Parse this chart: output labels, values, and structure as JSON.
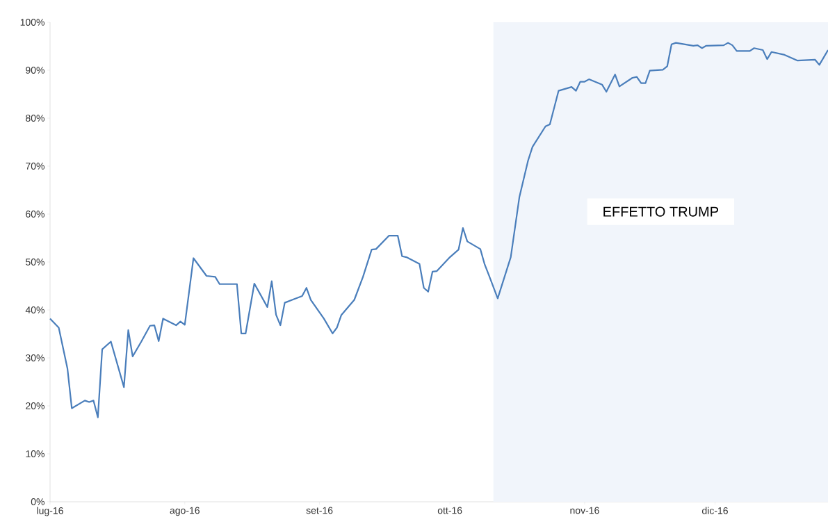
{
  "chart_data": {
    "type": "line",
    "color": "#4a7ebb",
    "x": [
      "2016-07-01",
      "2016-07-03",
      "2016-07-05",
      "2016-07-06",
      "2016-07-09",
      "2016-07-10",
      "2016-07-11",
      "2016-07-12",
      "2016-07-13",
      "2016-07-15",
      "2016-07-18",
      "2016-07-19",
      "2016-07-20",
      "2016-07-22",
      "2016-07-24",
      "2016-07-25",
      "2016-07-26",
      "2016-07-27",
      "2016-07-30",
      "2016-07-31",
      "2016-08-01",
      "2016-08-03",
      "2016-08-06",
      "2016-08-08",
      "2016-08-09",
      "2016-08-13",
      "2016-08-14",
      "2016-08-15",
      "2016-08-17",
      "2016-08-20",
      "2016-08-21",
      "2016-08-22",
      "2016-08-23",
      "2016-08-24",
      "2016-08-26",
      "2016-08-28",
      "2016-08-29",
      "2016-08-30",
      "2016-09-02",
      "2016-09-04",
      "2016-09-05",
      "2016-09-06",
      "2016-09-09",
      "2016-09-11",
      "2016-09-13",
      "2016-09-14",
      "2016-09-17",
      "2016-09-19",
      "2016-09-20",
      "2016-09-21",
      "2016-09-24",
      "2016-09-25",
      "2016-09-26",
      "2016-09-27",
      "2016-09-28",
      "2016-10-01",
      "2016-10-03",
      "2016-10-04",
      "2016-10-05",
      "2016-10-08",
      "2016-10-09",
      "2016-10-10",
      "2016-10-12",
      "2016-10-15",
      "2016-10-17",
      "2016-10-19",
      "2016-10-20",
      "2016-10-23",
      "2016-10-24",
      "2016-10-26",
      "2016-10-29",
      "2016-10-30",
      "2016-10-31",
      "2016-11-01",
      "2016-11-02",
      "2016-11-05",
      "2016-11-06",
      "2016-11-08",
      "2016-11-09",
      "2016-11-12",
      "2016-11-13",
      "2016-11-14",
      "2016-11-15",
      "2016-11-16",
      "2016-11-19",
      "2016-11-20",
      "2016-11-21",
      "2016-11-22",
      "2016-11-26",
      "2016-11-27",
      "2016-11-28",
      "2016-11-29",
      "2016-12-03",
      "2016-12-04",
      "2016-12-05",
      "2016-12-06",
      "2016-12-09",
      "2016-12-10",
      "2016-12-12",
      "2016-12-13",
      "2016-12-14",
      "2016-12-17",
      "2016-12-18",
      "2016-12-20",
      "2016-12-24",
      "2016-12-25",
      "2016-12-27"
    ],
    "values": [
      38.2,
      36.3,
      27.8,
      19.5,
      21.1,
      20.8,
      21.1,
      17.6,
      31.8,
      33.4,
      23.9,
      35.8,
      30.3,
      33.4,
      36.7,
      36.8,
      33.5,
      38.2,
      36.8,
      37.6,
      36.9,
      50.8,
      47.1,
      46.9,
      45.4,
      45.4,
      35.1,
      35.1,
      45.5,
      40.6,
      46.0,
      39.0,
      36.8,
      41.5,
      42.2,
      42.9,
      44.6,
      42.1,
      38.2,
      35.1,
      36.3,
      38.9,
      42.1,
      46.9,
      52.6,
      52.7,
      55.5,
      55.5,
      51.2,
      51.0,
      49.6,
      44.6,
      43.8,
      48.0,
      48.1,
      51.0,
      52.6,
      57.1,
      54.3,
      52.7,
      49.5,
      47.2,
      42.4,
      51.0,
      63.6,
      71.2,
      74.0,
      78.3,
      78.7,
      85.7,
      86.5,
      85.7,
      87.6,
      87.6,
      88.1,
      87.0,
      85.5,
      89.1,
      86.6,
      88.4,
      88.6,
      87.3,
      87.3,
      89.9,
      90.1,
      90.8,
      95.4,
      95.7,
      95.1,
      95.2,
      94.6,
      95.1,
      95.2,
      95.7,
      95.2,
      94.0,
      94.0,
      94.6,
      94.2,
      92.3,
      93.8,
      93.2,
      92.8,
      92.0,
      92.2,
      91.1,
      94.2
    ],
    "xlim": [
      "2016-07-01",
      "2016-12-27"
    ],
    "xticks": [
      {
        "value": "2016-07-01",
        "label": "lug-16"
      },
      {
        "value": "2016-08-01",
        "label": "ago-16"
      },
      {
        "value": "2016-09-01",
        "label": "set-16"
      },
      {
        "value": "2016-10-01",
        "label": "ott-16"
      },
      {
        "value": "2016-11-01",
        "label": "nov-16"
      },
      {
        "value": "2016-12-01",
        "label": "dic-16"
      }
    ],
    "ylim": [
      0,
      100
    ],
    "yticks": [
      {
        "value": 0,
        "label": "0%"
      },
      {
        "value": 10,
        "label": "10%"
      },
      {
        "value": 20,
        "label": "20%"
      },
      {
        "value": 30,
        "label": "30%"
      },
      {
        "value": 40,
        "label": "40%"
      },
      {
        "value": 50,
        "label": "50%"
      },
      {
        "value": 60,
        "label": "60%"
      },
      {
        "value": 70,
        "label": "70%"
      },
      {
        "value": 80,
        "label": "80%"
      },
      {
        "value": 90,
        "label": "90%"
      },
      {
        "value": 100,
        "label": "100%"
      }
    ],
    "bands": [
      {
        "axis": "x",
        "from": "2016-10-11",
        "to": "2016-12-27",
        "label": "EFFETTO TRUMP",
        "color": "#f1f5fb"
      }
    ],
    "grid": false,
    "marker": "none",
    "line_style": "solid"
  }
}
